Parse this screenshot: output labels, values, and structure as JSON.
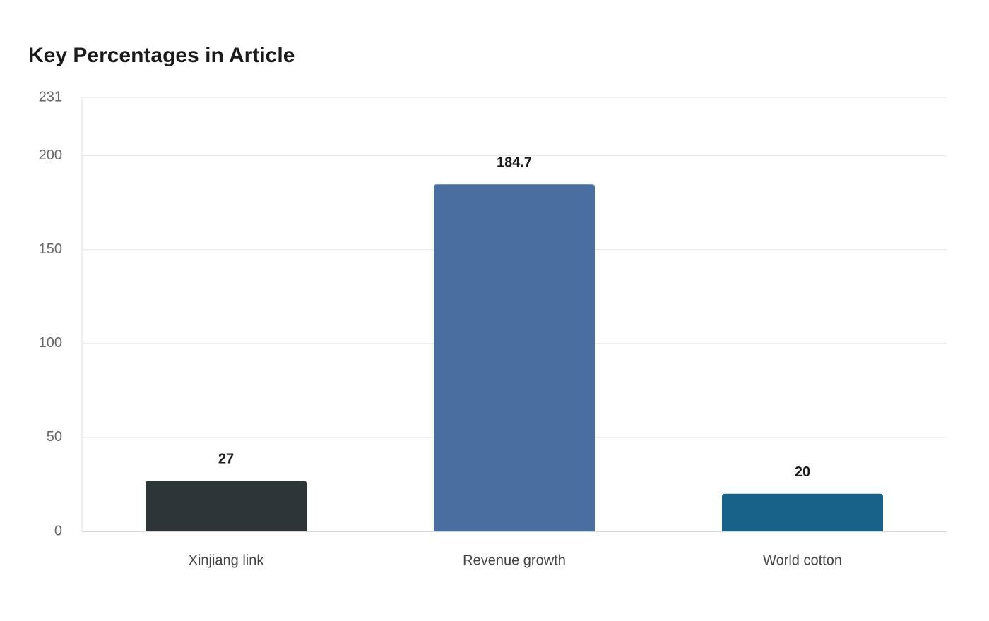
{
  "chart_data": {
    "type": "bar",
    "title": "Key Percentages in Article",
    "categories": [
      "Xinjiang link",
      "Revenue growth",
      "World cotton"
    ],
    "values": [
      27,
      184.7,
      20
    ],
    "colors": [
      "#2e3538",
      "#4a6ea0",
      "#186189"
    ],
    "ylim": [
      0,
      231
    ],
    "yticks": [
      0,
      50,
      100,
      150,
      200,
      231
    ],
    "grid": true
  }
}
